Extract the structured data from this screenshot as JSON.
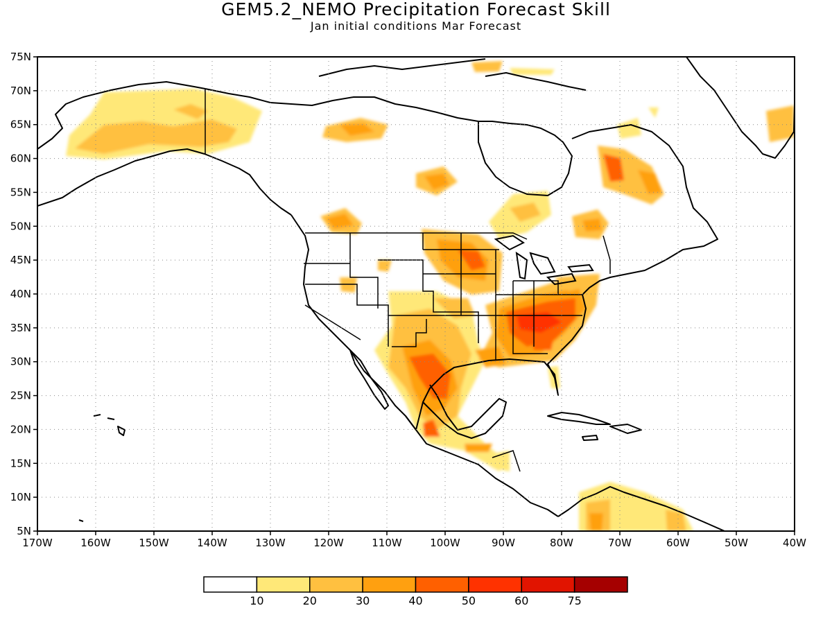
{
  "title": "GEM5.2_NEMO Precipitation Forecast Skill",
  "subtitle": "Jan initial conditions  Mar Forecast",
  "map": {
    "lon_range": [
      -170,
      -40
    ],
    "lat_range": [
      5,
      75
    ],
    "lat_ticks": [
      "75N",
      "70N",
      "65N",
      "60N",
      "55N",
      "50N",
      "45N",
      "40N",
      "35N",
      "30N",
      "25N",
      "20N",
      "15N",
      "10N",
      "5N"
    ],
    "lon_ticks": [
      "170W",
      "160W",
      "150W",
      "140W",
      "130W",
      "120W",
      "110W",
      "100W",
      "90W",
      "80W",
      "70W",
      "60W",
      "50W",
      "40W"
    ],
    "grid": "dotted",
    "coastline_color": "#000000"
  },
  "colorbar": {
    "labels": [
      "10",
      "20",
      "30",
      "40",
      "50",
      "60",
      "75"
    ],
    "colors": [
      "#ffffff",
      "#ffe878",
      "#ffc040",
      "#ffa010",
      "#ff6000",
      "#ff3200",
      "#e11400",
      "#a50000"
    ]
  }
}
